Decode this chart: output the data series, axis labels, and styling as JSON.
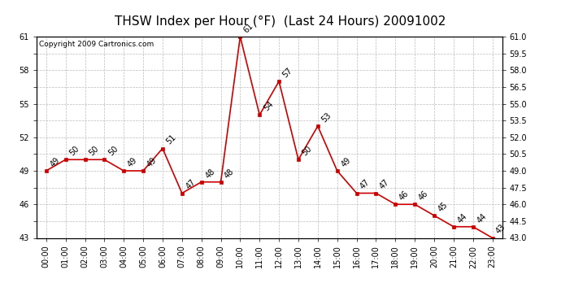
{
  "title": "THSW Index per Hour (°F)  (Last 24 Hours) 20091002",
  "copyright_text": "Copyright 2009 Cartronics.com",
  "hours": [
    "00:00",
    "01:00",
    "02:00",
    "03:00",
    "04:00",
    "05:00",
    "06:00",
    "07:00",
    "08:00",
    "09:00",
    "10:00",
    "11:00",
    "12:00",
    "13:00",
    "14:00",
    "15:00",
    "16:00",
    "17:00",
    "18:00",
    "19:00",
    "20:00",
    "21:00",
    "22:00",
    "23:00"
  ],
  "values": [
    49,
    50,
    50,
    50,
    49,
    49,
    51,
    47,
    48,
    48,
    61,
    54,
    57,
    50,
    53,
    49,
    47,
    47,
    46,
    46,
    45,
    44,
    44,
    43
  ],
  "line_color": "#cc0000",
  "marker": "s",
  "marker_size": 3,
  "marker_facecolor": "#cc0000",
  "ylim": [
    43.0,
    61.0
  ],
  "yticks": [
    43.0,
    44.5,
    46.0,
    47.5,
    49.0,
    50.5,
    52.0,
    53.5,
    55.0,
    56.5,
    58.0,
    59.5,
    61.0
  ],
  "background_color": "#ffffff",
  "grid_color": "#bbbbbb",
  "title_fontsize": 11,
  "label_fontsize": 7,
  "annotation_fontsize": 7,
  "copyright_fontsize": 6.5
}
